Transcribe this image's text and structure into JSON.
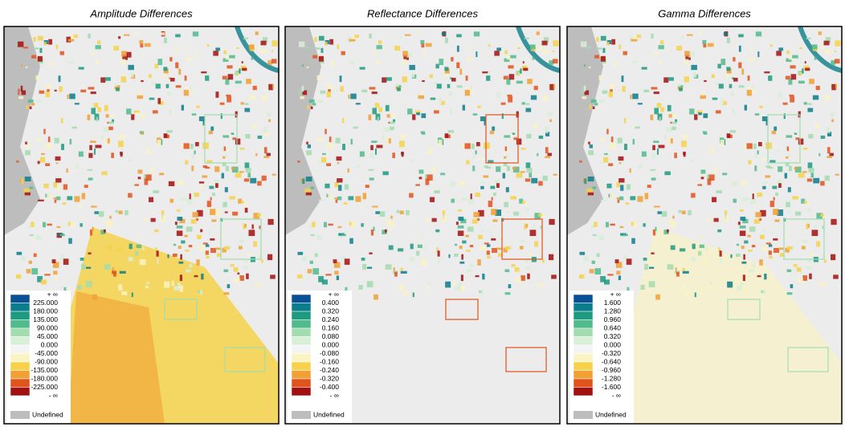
{
  "legend_colors": [
    "#0b4f94",
    "#0c7d8a",
    "#1e9a80",
    "#52bb8e",
    "#a3dcae",
    "#d9efd8",
    "#f4f4f4",
    "#faf3c4",
    "#f6d24a",
    "#f0a034",
    "#e0531d",
    "#a31010"
  ],
  "undefined_color": "#bdbdbd",
  "panels": [
    {
      "title": "Amplitude Differences",
      "legend": {
        "labels": [
          "+ ∞",
          "225.000",
          "180.000",
          "135.000",
          "90.000",
          "45.000",
          "0.000",
          "-45.000",
          "-90.000",
          "-135.000",
          "-180.000",
          "-225.000",
          "- ∞"
        ],
        "undefined_label": "Undefined"
      }
    },
    {
      "title": "Reflectance Differences",
      "legend": {
        "labels": [
          "+ ∞",
          "0.400",
          "0.320",
          "0.240",
          "0.160",
          "0.080",
          "0.000",
          "-0.080",
          "-0.160",
          "-0.240",
          "-0.320",
          "-0.400",
          "- ∞"
        ],
        "undefined_label": "Undefined"
      }
    },
    {
      "title": "Gamma Differences",
      "legend": {
        "labels": [
          "+ ∞",
          "1.600",
          "1.280",
          "0.960",
          "0.640",
          "0.320",
          "0.000",
          "-0.320",
          "-0.640",
          "-0.960",
          "-1.280",
          "-1.600",
          "- ∞"
        ],
        "undefined_label": "Undefined"
      }
    }
  ]
}
